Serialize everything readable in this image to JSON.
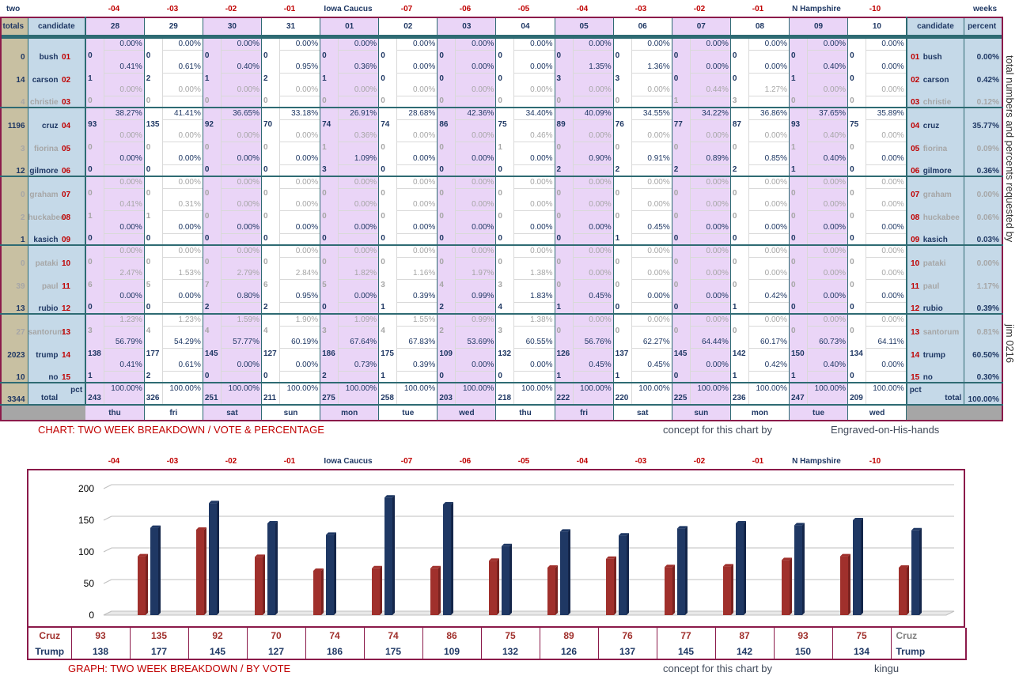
{
  "top": {
    "two": "two",
    "weeks": "weeks",
    "markers": [
      "-04",
      "-03",
      "-02",
      "-01",
      "Iowa Caucus",
      "-07",
      "-06",
      "-05",
      "-04",
      "-03",
      "-02",
      "-01",
      "N Hampshire",
      "-10"
    ]
  },
  "header": {
    "totals": "totals",
    "candidate": "candidate",
    "dates": [
      "28",
      "29",
      "30",
      "31",
      "01",
      "02",
      "03",
      "04",
      "05",
      "06",
      "07",
      "08",
      "09",
      "10"
    ],
    "candidate2": "candidate",
    "percent": "percent"
  },
  "rows": [
    {
      "total": "0",
      "name": "bush",
      "id": "01",
      "dim": false,
      "votes": [
        "0",
        "0",
        "0",
        "0",
        "0",
        "0",
        "0",
        "0",
        "0",
        "0",
        "0",
        "0",
        "0",
        "0"
      ],
      "pcts": [
        "0.00%",
        "0.00%",
        "0.00%",
        "0.00%",
        "0.00%",
        "0.00%",
        "0.00%",
        "0.00%",
        "0.00%",
        "0.00%",
        "0.00%",
        "0.00%",
        "0.00%",
        "0.00%"
      ],
      "pct": "0.00%"
    },
    {
      "total": "14",
      "name": "carson",
      "id": "02",
      "dim": false,
      "votes": [
        "1",
        "2",
        "1",
        "2",
        "1",
        "0",
        "0",
        "0",
        "3",
        "3",
        "0",
        "0",
        "1",
        "0"
      ],
      "pcts": [
        "0.41%",
        "0.61%",
        "0.40%",
        "0.95%",
        "0.36%",
        "0.00%",
        "0.00%",
        "0.00%",
        "1.35%",
        "1.36%",
        "0.00%",
        "0.00%",
        "0.40%",
        "0.00%"
      ],
      "pct": "0.42%"
    },
    {
      "total": "4",
      "name": "christie",
      "id": "03",
      "dim": true,
      "votes": [
        "0",
        "0",
        "0",
        "0",
        "0",
        "0",
        "0",
        "0",
        "0",
        "0",
        "1",
        "3",
        "0",
        "0"
      ],
      "pcts": [
        "0.00%",
        "0.00%",
        "0.00%",
        "0.00%",
        "0.00%",
        "0.00%",
        "0.00%",
        "0.00%",
        "0.00%",
        "0.00%",
        "0.44%",
        "1.27%",
        "0.00%",
        "0.00%"
      ],
      "pct": "0.12%"
    },
    {
      "total": "1196",
      "name": "cruz",
      "id": "04",
      "dim": false,
      "votes": [
        "93",
        "135",
        "92",
        "70",
        "74",
        "74",
        "86",
        "75",
        "89",
        "76",
        "77",
        "87",
        "93",
        "75"
      ],
      "pcts": [
        "38.27%",
        "41.41%",
        "36.65%",
        "33.18%",
        "26.91%",
        "28.68%",
        "42.36%",
        "34.40%",
        "40.09%",
        "34.55%",
        "34.22%",
        "36.86%",
        "37.65%",
        "35.89%"
      ],
      "pct": "35.77%"
    },
    {
      "total": "3",
      "name": "fiorina",
      "id": "05",
      "dim": true,
      "votes": [
        "0",
        "0",
        "0",
        "0",
        "1",
        "0",
        "0",
        "1",
        "0",
        "0",
        "0",
        "0",
        "1",
        "0"
      ],
      "pcts": [
        "0.00%",
        "0.00%",
        "0.00%",
        "0.00%",
        "0.36%",
        "0.00%",
        "0.00%",
        "0.46%",
        "0.00%",
        "0.00%",
        "0.00%",
        "0.00%",
        "0.40%",
        "0.00%"
      ],
      "pct": "0.09%"
    },
    {
      "total": "12",
      "name": "gilmore",
      "id": "06",
      "dim": false,
      "votes": [
        "0",
        "0",
        "0",
        "0",
        "3",
        "0",
        "0",
        "0",
        "2",
        "2",
        "2",
        "2",
        "1",
        "0"
      ],
      "pcts": [
        "0.00%",
        "0.00%",
        "0.00%",
        "0.00%",
        "1.09%",
        "0.00%",
        "0.00%",
        "0.00%",
        "0.90%",
        "0.91%",
        "0.89%",
        "0.85%",
        "0.40%",
        "0.00%"
      ],
      "pct": "0.36%"
    },
    {
      "total": "0",
      "name": "graham",
      "id": "07",
      "dim": true,
      "votes": [
        "0",
        "0",
        "0",
        "0",
        "0",
        "0",
        "0",
        "0",
        "0",
        "0",
        "0",
        "0",
        "0",
        "0"
      ],
      "pcts": [
        "0.00%",
        "0.00%",
        "0.00%",
        "0.00%",
        "0.00%",
        "0.00%",
        "0.00%",
        "0.00%",
        "0.00%",
        "0.00%",
        "0.00%",
        "0.00%",
        "0.00%",
        "0.00%"
      ],
      "pct": "0.00%"
    },
    {
      "total": "2",
      "name": "huckabee",
      "id": "08",
      "dim": true,
      "votes": [
        "1",
        "1",
        "0",
        "0",
        "0",
        "0",
        "0",
        "0",
        "0",
        "0",
        "0",
        "0",
        "0",
        "0"
      ],
      "pcts": [
        "0.41%",
        "0.31%",
        "0.00%",
        "0.00%",
        "0.00%",
        "0.00%",
        "0.00%",
        "0.00%",
        "0.00%",
        "0.00%",
        "0.00%",
        "0.00%",
        "0.00%",
        "0.00%"
      ],
      "pct": "0.06%"
    },
    {
      "total": "1",
      "name": "kasich",
      "id": "09",
      "dim": false,
      "votes": [
        "0",
        "0",
        "0",
        "0",
        "0",
        "0",
        "0",
        "0",
        "0",
        "1",
        "0",
        "0",
        "0",
        "0"
      ],
      "pcts": [
        "0.00%",
        "0.00%",
        "0.00%",
        "0.00%",
        "0.00%",
        "0.00%",
        "0.00%",
        "0.00%",
        "0.00%",
        "0.45%",
        "0.00%",
        "0.00%",
        "0.00%",
        "0.00%"
      ],
      "pct": "0.03%"
    },
    {
      "total": "0",
      "name": "pataki",
      "id": "10",
      "dim": true,
      "votes": [
        "0",
        "0",
        "0",
        "0",
        "0",
        "0",
        "0",
        "0",
        "0",
        "0",
        "0",
        "0",
        "0",
        "0"
      ],
      "pcts": [
        "0.00%",
        "0.00%",
        "0.00%",
        "0.00%",
        "0.00%",
        "0.00%",
        "0.00%",
        "0.00%",
        "0.00%",
        "0.00%",
        "0.00%",
        "0.00%",
        "0.00%",
        "0.00%"
      ],
      "pct": "0.00%"
    },
    {
      "total": "39",
      "name": "paul",
      "id": "11",
      "dim": true,
      "votes": [
        "6",
        "5",
        "7",
        "6",
        "5",
        "3",
        "4",
        "3",
        "0",
        "0",
        "0",
        "0",
        "0",
        "0"
      ],
      "pcts": [
        "2.47%",
        "1.53%",
        "2.79%",
        "2.84%",
        "1.82%",
        "1.16%",
        "1.97%",
        "1.38%",
        "0.00%",
        "0.00%",
        "0.00%",
        "0.00%",
        "0.00%",
        "0.00%"
      ],
      "pct": "1.17%"
    },
    {
      "total": "13",
      "name": "rubio",
      "id": "12",
      "dim": false,
      "votes": [
        "0",
        "0",
        "2",
        "2",
        "0",
        "1",
        "2",
        "4",
        "1",
        "0",
        "0",
        "1",
        "0",
        "0"
      ],
      "pcts": [
        "0.00%",
        "0.00%",
        "0.80%",
        "0.95%",
        "0.00%",
        "0.39%",
        "0.99%",
        "1.83%",
        "0.45%",
        "0.00%",
        "0.00%",
        "0.42%",
        "0.00%",
        "0.00%"
      ],
      "pct": "0.39%"
    },
    {
      "total": "27",
      "name": "santorum",
      "id": "13",
      "dim": true,
      "votes": [
        "3",
        "4",
        "4",
        "4",
        "3",
        "4",
        "2",
        "3",
        "0",
        "0",
        "0",
        "0",
        "0",
        "0"
      ],
      "pcts": [
        "1.23%",
        "1.23%",
        "1.59%",
        "1.90%",
        "1.09%",
        "1.55%",
        "0.99%",
        "1.38%",
        "0.00%",
        "0.00%",
        "0.00%",
        "0.00%",
        "0.00%",
        "0.00%"
      ],
      "pct": "0.81%"
    },
    {
      "total": "2023",
      "name": "trump",
      "id": "14",
      "dim": false,
      "votes": [
        "138",
        "177",
        "145",
        "127",
        "186",
        "175",
        "109",
        "132",
        "126",
        "137",
        "145",
        "142",
        "150",
        "134"
      ],
      "pcts": [
        "56.79%",
        "54.29%",
        "57.77%",
        "60.19%",
        "67.64%",
        "67.83%",
        "53.69%",
        "60.55%",
        "56.76%",
        "62.27%",
        "64.44%",
        "60.17%",
        "60.73%",
        "64.11%"
      ],
      "pct": "60.50%"
    },
    {
      "total": "10",
      "name": "no",
      "id": "15",
      "dim": false,
      "votes": [
        "1",
        "2",
        "0",
        "0",
        "2",
        "1",
        "0",
        "0",
        "1",
        "1",
        "0",
        "1",
        "1",
        "0"
      ],
      "pcts": [
        "0.41%",
        "0.61%",
        "0.00%",
        "0.00%",
        "0.73%",
        "0.39%",
        "0.00%",
        "0.00%",
        "0.45%",
        "0.45%",
        "0.00%",
        "0.42%",
        "0.40%",
        "0.00%"
      ],
      "pct": "0.30%"
    }
  ],
  "footer": {
    "total": "3344",
    "label_pct": "pct",
    "label_total": "total",
    "votes": [
      "243",
      "326",
      "251",
      "211",
      "275",
      "258",
      "203",
      "218",
      "222",
      "220",
      "225",
      "236",
      "247",
      "209"
    ],
    "pcts": [
      "100.00%",
      "100.00%",
      "100.00%",
      "100.00%",
      "100.00%",
      "100.00%",
      "100.00%",
      "100.00%",
      "100.00%",
      "100.00%",
      "100.00%",
      "100.00%",
      "100.00%",
      "100.00%"
    ],
    "pct": "100.00%"
  },
  "days": [
    "thu",
    "fri",
    "sat",
    "sun",
    "mon",
    "tue",
    "wed",
    "thu",
    "fri",
    "sat",
    "sun",
    "mon",
    "tue",
    "wed"
  ],
  "side_text": "total numbers and percents requested by",
  "side_text2": "jim 0216",
  "caption1": {
    "title": "CHART: TWO WEEK BREAKDOWN / VOTE & PERCENTAGE",
    "concept": "concept for this chart by",
    "author": "Engraved-on-His-hands"
  },
  "caption2": {
    "title": "GRAPH: TWO WEEK BREAKDOWN / BY VOTE",
    "concept": "concept for this chart by",
    "author": "kingu"
  },
  "colors": {
    "cruz": "#a0302c",
    "trump": "#1f3864",
    "purple_col": "#ead5f7",
    "teal": "#2e6b73",
    "border": "#8b1a4a"
  },
  "chart_data": {
    "type": "bar",
    "categories": [
      "-04",
      "-03",
      "-02",
      "-01",
      "Iowa Caucus",
      "-07",
      "-06",
      "-05",
      "-04",
      "-03",
      "-02",
      "-01",
      "N Hampshire",
      "-10"
    ],
    "series": [
      {
        "name": "Cruz",
        "values": [
          93,
          135,
          92,
          70,
          74,
          74,
          86,
          75,
          89,
          76,
          77,
          87,
          93,
          75
        ]
      },
      {
        "name": "Trump",
        "values": [
          138,
          177,
          145,
          127,
          186,
          175,
          109,
          132,
          126,
          137,
          145,
          142,
          150,
          134
        ]
      }
    ],
    "ylim": [
      0,
      200
    ],
    "yticks": [
      0,
      50,
      100,
      150,
      200
    ],
    "grid": true,
    "legend": "table below chart"
  }
}
